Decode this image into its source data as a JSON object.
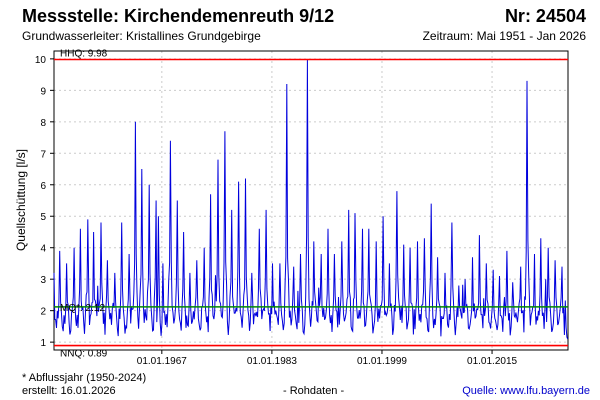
{
  "header": {
    "title": "Messstelle: Kirchendemenreuth 9/12",
    "number": "Nr: 24504",
    "aquifer": "Grundwasserleiter: Kristallines Grundgebirge",
    "period": "Zeitraum: Mai 1951 - Jan 2026"
  },
  "footer": {
    "note": "* Abflussjahr (1950-2024)",
    "created": "erstellt:  16.01.2026",
    "rawdata": "- Rohdaten -",
    "source_label": "Quelle:",
    "source_url": "www.lfu.bayern.de"
  },
  "colors": {
    "series": "#0000dd",
    "extremes": "#ff0000",
    "mean": "#008800",
    "grid": "#cccccc"
  },
  "chart_data": {
    "type": "line",
    "title": "Messstelle: Kirchendemenreuth 9/12",
    "ylabel": "Quellschüttung [l/s]",
    "xlabel": "",
    "ylim": [
      0.75,
      10.25
    ],
    "xlim": [
      "1951-05-01",
      "2026-01-15"
    ],
    "yticks": [
      "1",
      "2",
      "3",
      "4",
      "5",
      "6",
      "7",
      "8",
      "9",
      "10"
    ],
    "xticks": [
      "01.01.1967",
      "01.01.1983",
      "01.01.1999",
      "01.01.2015"
    ],
    "grid": true,
    "reference_lines": [
      {
        "label": "HHQ: 9.98",
        "value": 9.98,
        "color": "#ff0000"
      },
      {
        "label": "MQ*: 2.12",
        "value": 2.12,
        "color": "#008800"
      },
      {
        "label": "NNQ: 0.89",
        "value": 0.89,
        "color": "#ff0000"
      }
    ],
    "series": [
      {
        "x": [
          "1951-05",
          "1952-03",
          "1953-03",
          "1954-04",
          "1955-03",
          "1956-04",
          "1957-02",
          "1958-03",
          "1959-02",
          "1960-03",
          "1961-03",
          "1962-04",
          "1963-03",
          "1964-02",
          "1965-03",
          "1966-03",
          "1966-07",
          "1967-03",
          "1968-04",
          "1969-04",
          "1970-03",
          "1971-02",
          "1972-02",
          "1973-03",
          "1974-02",
          "1975-03",
          "1976-03",
          "1977-03",
          "1978-03",
          "1979-03",
          "1980-02",
          "1981-03",
          "1982-03",
          "1983-02",
          "1984-03",
          "1985-03",
          "1986-03",
          "1987-03",
          "1988-03",
          "1989-02",
          "1990-03",
          "1991-03",
          "1992-02",
          "1993-03",
          "1994-03",
          "1995-02",
          "1996-03",
          "1997-02",
          "1998-03",
          "1999-03",
          "2000-02",
          "2001-03",
          "2002-03",
          "2003-02",
          "2004-03",
          "2005-03",
          "2006-03",
          "2007-02",
          "2008-03",
          "2009-03",
          "2010-03",
          "2011-02",
          "2012-03",
          "2013-03",
          "2014-03",
          "2015-03",
          "2016-02",
          "2017-03",
          "2018-01",
          "2019-03",
          "2020-02",
          "2021-03",
          "2022-02",
          "2023-03",
          "2024-03",
          "2025-03",
          "2026-01"
        ],
        "y": [
          3.2,
          3.9,
          3.5,
          4.0,
          4.6,
          4.9,
          4.5,
          4.8,
          3.6,
          3.2,
          4.8,
          3.8,
          8.0,
          6.5,
          6.0,
          5.5,
          5.0,
          3.5,
          7.4,
          5.5,
          4.5,
          3.2,
          3.6,
          4.0,
          5.7,
          6.8,
          7.7,
          5.2,
          6.1,
          6.2,
          3.2,
          4.6,
          5.2,
          3.5,
          3.5,
          9.2,
          3.4,
          3.8,
          9.98,
          4.2,
          3.8,
          4.6,
          3.8,
          4.2,
          5.2,
          5.1,
          4.6,
          4.6,
          4.2,
          5.0,
          3.5,
          5.8,
          4.1,
          4.0,
          4.2,
          4.3,
          5.4,
          3.7,
          3.2,
          4.8,
          2.8,
          3.0,
          3.7,
          4.4,
          3.5,
          3.3,
          3.1,
          3.9,
          2.9,
          3.4,
          9.3,
          3.8,
          4.3,
          4.0,
          3.6,
          3.4,
          1.1
        ]
      }
    ]
  }
}
